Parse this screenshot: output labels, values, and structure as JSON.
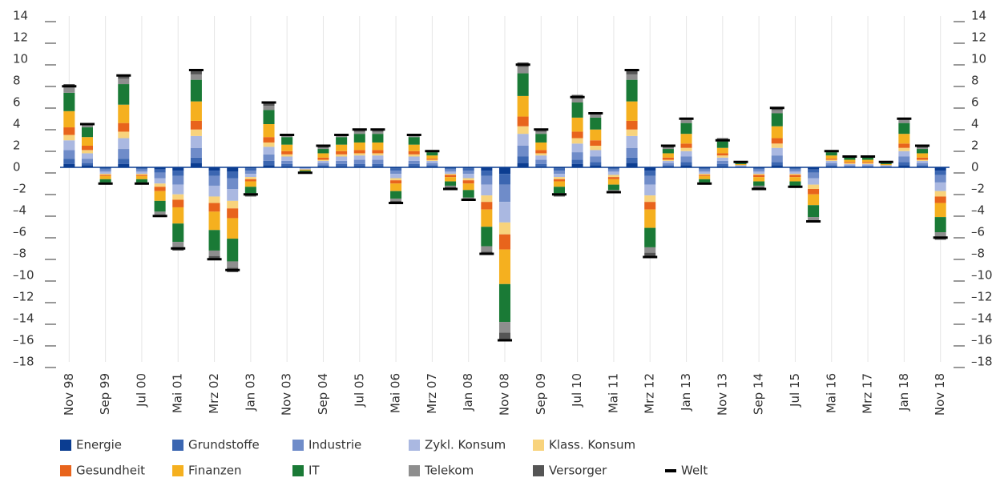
{
  "chart_data": {
    "type": "stacked_bar",
    "categories": [
      "Nov 98",
      null,
      "Sep 99",
      null,
      "Jul 00",
      null,
      "Mai 01",
      null,
      "Mrz 02",
      null,
      "Jan 03",
      null,
      "Nov 03",
      null,
      "Sep 04",
      null,
      "Jul 05",
      null,
      "Mai 06",
      null,
      "Mrz 07",
      null,
      "Jan 08",
      null,
      "Nov 08",
      null,
      "Sep 09",
      null,
      "Jul 10",
      null,
      "Mai 11",
      null,
      "Mrz 12",
      null,
      "Jan 13",
      null,
      "Nov 13",
      null,
      "Sep 14",
      null,
      "Jul 15",
      null,
      "Mai 16",
      null,
      "Mrz 17",
      null,
      "Jan 18",
      null,
      "Nov 18"
    ],
    "series": [
      {
        "name": "Energie",
        "color": "#0b3d91",
        "values": [
          0.3,
          0.2,
          -0.1,
          0.3,
          -0.1,
          -0.2,
          -0.3,
          0.4,
          -0.3,
          -0.4,
          -0.1,
          0.2,
          0.1,
          0,
          0.1,
          0.1,
          0.1,
          0.1,
          -0.1,
          0.1,
          0.1,
          -0.1,
          -0.1,
          -0.3,
          -0.6,
          0.4,
          0.1,
          -0.1,
          0.3,
          0.2,
          -0.1,
          0.4,
          -0.3,
          0.1,
          0.2,
          -0.1,
          0.1,
          0,
          -0.1,
          0.2,
          -0.1,
          -0.2,
          0.1,
          0,
          0,
          0,
          0.2,
          0.1,
          -0.3
        ]
      },
      {
        "name": "Grundstoffe",
        "color": "#3b66b1",
        "values": [
          0.5,
          0.2,
          -0.1,
          0.5,
          -0.1,
          -0.3,
          -0.5,
          0.5,
          -0.5,
          -0.6,
          -0.2,
          0.4,
          0.2,
          0,
          0.1,
          0.2,
          0.2,
          0.2,
          -0.2,
          0.2,
          0.1,
          -0.1,
          -0.2,
          -0.5,
          -1.0,
          0.6,
          0.2,
          -0.2,
          0.4,
          0.3,
          -0.1,
          0.5,
          -0.5,
          0.1,
          0.3,
          -0.1,
          0.2,
          0,
          -0.1,
          0.3,
          -0.1,
          -0.3,
          0.1,
          0.1,
          0.1,
          0,
          0.3,
          0.1,
          -0.4
        ]
      },
      {
        "name": "Industrie",
        "color": "#6f8cc9",
        "values": [
          0.8,
          0.4,
          -0.2,
          0.9,
          -0.2,
          -0.5,
          -0.8,
          0.9,
          -0.9,
          -1.0,
          -0.3,
          0.6,
          0.3,
          -0.1,
          0.2,
          0.3,
          0.4,
          0.4,
          -0.3,
          0.3,
          0.2,
          -0.2,
          -0.3,
          -0.8,
          -1.6,
          1.0,
          0.4,
          -0.3,
          0.7,
          0.5,
          -0.2,
          0.9,
          -0.8,
          0.2,
          0.5,
          -0.2,
          0.3,
          0.1,
          -0.2,
          0.6,
          -0.2,
          -0.5,
          0.2,
          0.1,
          0.1,
          0.1,
          0.5,
          0.2,
          -0.7
        ]
      },
      {
        "name": "Zykl. Konsum",
        "color": "#aab8e1",
        "values": [
          0.9,
          0.5,
          -0.2,
          1.0,
          -0.2,
          -0.5,
          -0.9,
          1.1,
          -1.0,
          -1.1,
          -0.3,
          0.7,
          0.4,
          -0.1,
          0.2,
          0.4,
          0.4,
          0.4,
          -0.4,
          0.4,
          0.2,
          -0.2,
          -0.4,
          -1.0,
          -1.9,
          1.1,
          0.4,
          -0.3,
          0.8,
          0.6,
          -0.3,
          1.1,
          -1.0,
          0.2,
          0.5,
          -0.2,
          0.3,
          0.1,
          -0.2,
          0.7,
          -0.2,
          -0.6,
          0.2,
          0.1,
          0.1,
          0.1,
          0.5,
          0.2,
          -0.8
        ]
      },
      {
        "name": "Klass. Konsum",
        "color": "#f8d37c",
        "values": [
          0.5,
          0.3,
          -0.1,
          0.6,
          -0.1,
          -0.3,
          -0.5,
          0.6,
          -0.6,
          -0.7,
          -0.2,
          0.4,
          0.2,
          0,
          0.1,
          0.2,
          0.2,
          0.2,
          -0.2,
          0.2,
          0.1,
          -0.1,
          -0.2,
          -0.6,
          -1.1,
          0.7,
          0.2,
          -0.2,
          0.5,
          0.4,
          -0.2,
          0.6,
          -0.6,
          0.1,
          0.3,
          -0.1,
          0.2,
          0,
          -0.1,
          0.4,
          -0.1,
          -0.4,
          0.1,
          0.1,
          0.1,
          0,
          0.3,
          0.1,
          -0.5
        ]
      },
      {
        "name": "Gesundheit",
        "color": "#e8641c",
        "values": [
          0.7,
          0.4,
          -0.1,
          0.8,
          -0.1,
          -0.4,
          -0.7,
          0.8,
          -0.8,
          -0.9,
          -0.2,
          0.5,
          0.3,
          0,
          0.2,
          0.3,
          0.3,
          0.3,
          -0.3,
          0.3,
          0.1,
          -0.2,
          -0.3,
          -0.7,
          -1.4,
          0.9,
          0.3,
          -0.2,
          0.6,
          0.5,
          -0.2,
          0.8,
          -0.7,
          0.2,
          0.4,
          -0.1,
          0.2,
          0,
          -0.2,
          0.5,
          -0.2,
          -0.5,
          0.1,
          0.1,
          0.1,
          0,
          0.4,
          0.2,
          -0.6
        ]
      },
      {
        "name": "Finanzen",
        "color": "#f5b01f",
        "values": [
          1.5,
          0.8,
          -0.3,
          1.7,
          -0.3,
          -0.9,
          -1.5,
          1.8,
          -1.7,
          -1.9,
          -0.5,
          1.2,
          0.6,
          -0.1,
          0.4,
          0.6,
          0.7,
          0.7,
          -0.7,
          0.6,
          0.3,
          -0.4,
          -0.6,
          -1.6,
          -3.2,
          1.9,
          0.7,
          -0.5,
          1.3,
          1.0,
          -0.5,
          1.8,
          -1.7,
          0.4,
          0.9,
          -0.3,
          0.5,
          0.1,
          -0.4,
          1.1,
          -0.4,
          -1.0,
          0.3,
          0.2,
          0.2,
          0.1,
          0.9,
          0.4,
          -1.3
        ]
      },
      {
        "name": "IT",
        "color": "#1a7a36",
        "values": [
          1.7,
          0.9,
          -0.3,
          1.9,
          -0.3,
          -1.0,
          -1.7,
          2.0,
          -1.9,
          -2.1,
          -0.6,
          1.3,
          0.7,
          -0.1,
          0.4,
          0.7,
          0.8,
          0.8,
          -0.7,
          0.7,
          0.3,
          -0.4,
          -0.7,
          -1.8,
          -3.5,
          2.1,
          0.8,
          -0.6,
          1.4,
          1.1,
          -0.5,
          2.0,
          -1.8,
          0.4,
          1.0,
          -0.3,
          0.6,
          0.1,
          -0.4,
          1.2,
          -0.4,
          -1.1,
          0.3,
          0.2,
          0.2,
          0.1,
          1.0,
          0.4,
          -1.4
        ]
      },
      {
        "name": "Telekom",
        "color": "#8e8e8e",
        "values": [
          0.5,
          0.2,
          -0.1,
          0.5,
          -0.1,
          -0.3,
          -0.5,
          0.5,
          -0.5,
          -0.6,
          -0.2,
          0.4,
          0.2,
          0,
          0.1,
          0.2,
          0.2,
          0.2,
          -0.2,
          0.2,
          0.1,
          -0.1,
          -0.2,
          -0.5,
          -1.0,
          0.6,
          0.2,
          -0.2,
          0.4,
          0.3,
          -0.1,
          0.5,
          -0.5,
          0.1,
          0.3,
          -0.1,
          0.2,
          0,
          -0.1,
          0.3,
          -0.1,
          -0.3,
          0.1,
          0.1,
          0.1,
          0,
          0.3,
          0.1,
          -0.4
        ]
      },
      {
        "name": "Versorger",
        "color": "#555555",
        "values": [
          0.3,
          0.2,
          -0.1,
          0.3,
          -0.1,
          -0.2,
          -0.3,
          0.4,
          -0.3,
          -0.4,
          -0.1,
          0.2,
          0.1,
          0,
          0.1,
          0.1,
          0.1,
          0.1,
          -0.1,
          0.1,
          0.1,
          -0.1,
          -0.1,
          -0.3,
          -0.6,
          0.4,
          0.1,
          -0.1,
          0.3,
          0.2,
          -0.1,
          0.4,
          -0.3,
          0.1,
          0.2,
          -0.1,
          0.1,
          0,
          -0.1,
          0.2,
          -0.1,
          -0.2,
          0.1,
          0,
          0,
          0,
          0.2,
          0.1,
          -0.3
        ]
      },
      {
        "name": "Welt",
        "color": "#000000",
        "marker": "dash",
        "values": [
          7.5,
          4,
          -1.5,
          8.5,
          -1.5,
          -4.5,
          -7.5,
          9,
          -8.5,
          -9.5,
          -2.5,
          6,
          3,
          -0.5,
          2,
          3,
          3.5,
          3.5,
          -3.3,
          3,
          1.5,
          -2,
          -3,
          -8,
          -16,
          9.5,
          3.5,
          -2.5,
          6.5,
          5,
          -2.3,
          9,
          -8.3,
          2,
          4.5,
          -1.5,
          2.5,
          0.5,
          -2,
          5.5,
          -1.8,
          -5,
          1.5,
          1,
          1,
          0.5,
          4.5,
          2,
          -6.5
        ]
      }
    ],
    "ylim": [
      -18,
      14
    ],
    "yticks": [
      {
        "value": -18,
        "label": "–18"
      },
      {
        "value": -16,
        "label": "–16"
      },
      {
        "value": -14,
        "label": "–14"
      },
      {
        "value": -12,
        "label": "–12"
      },
      {
        "value": -10,
        "label": "–10"
      },
      {
        "value": -8,
        "label": "–8"
      },
      {
        "value": -6,
        "label": "–6"
      },
      {
        "value": -4,
        "label": "–4"
      },
      {
        "value": -2,
        "label": "–2"
      },
      0,
      2,
      4,
      6,
      8,
      10,
      12,
      14
    ],
    "y2lim": [
      -18,
      14
    ],
    "y2ticks": [
      {
        "value": -18,
        "label": "–18"
      },
      {
        "value": -16,
        "label": "–16"
      },
      {
        "value": -14,
        "label": "–14"
      },
      {
        "value": -12,
        "label": "–12"
      },
      {
        "value": -10,
        "label": "–10"
      },
      {
        "value": -8,
        "label": "–8"
      },
      {
        "value": -6,
        "label": "–6"
      },
      {
        "value": -4,
        "label": "–4"
      },
      {
        "value": -2,
        "label": "–2"
      },
      0,
      2,
      4,
      6,
      8,
      10,
      12,
      14
    ],
    "grid": true
  }
}
